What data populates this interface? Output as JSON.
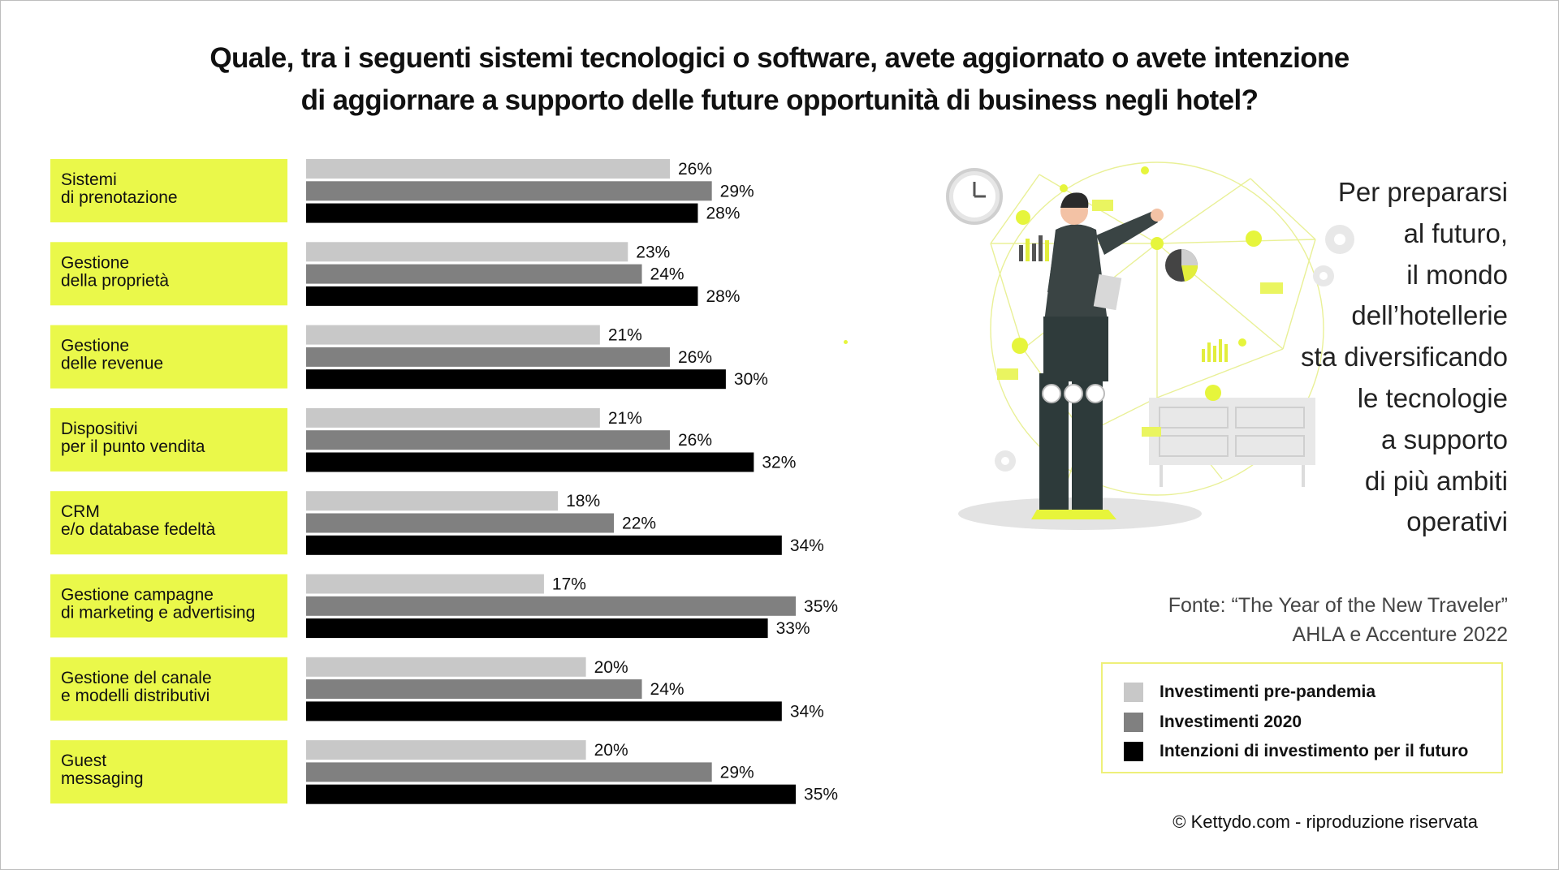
{
  "title_line1": "Quale, tra i seguenti sistemi tecnologici o software, avete aggiornato o avete intenzione",
  "title_line2": "di aggiornare a supporto delle future opportunità di business negli hotel?",
  "side_text": [
    "Per prepararsi",
    "al futuro,",
    "il mondo",
    "dell’hotellerie",
    "sta diversificando",
    "le tecnologie",
    "a supporto",
    "di più ambiti",
    "operativi"
  ],
  "source_line1": "Fonte: “The Year of the New Traveler”",
  "source_line2": "AHLA e Accenture 2022",
  "copyright": "© Kettydo.com - riproduzione riservata",
  "colors": {
    "accent": "#eaf84a",
    "pre_pandemia": "#c8c8c8",
    "invest_2020": "#808080",
    "future": "#000000"
  },
  "chart_data": {
    "type": "bar",
    "orientation": "horizontal",
    "categories": [
      [
        "Sistemi",
        "di prenotazione"
      ],
      [
        "Gestione",
        "della proprietà"
      ],
      [
        "Gestione",
        "delle revenue"
      ],
      [
        "Dispositivi",
        "per il punto vendita"
      ],
      [
        "CRM",
        "e/o database fedeltà"
      ],
      [
        "Gestione campagne",
        "di marketing e advertising"
      ],
      [
        "Gestione del canale",
        "e modelli distributivi"
      ],
      [
        "Guest",
        "messaging"
      ]
    ],
    "series": [
      {
        "name": "Investimenti pre-pandemia",
        "color": "#c8c8c8",
        "values": [
          26,
          23,
          21,
          21,
          18,
          17,
          20,
          20
        ]
      },
      {
        "name": "Investimenti 2020",
        "color": "#808080",
        "values": [
          29,
          24,
          26,
          26,
          22,
          35,
          24,
          29
        ]
      },
      {
        "name": "Intenzioni di investimento per il futuro",
        "color": "#000000",
        "values": [
          28,
          28,
          30,
          32,
          34,
          33,
          34,
          35
        ]
      }
    ],
    "value_suffix": "%",
    "xlim": [
      0,
      35
    ],
    "grid": false,
    "legend_position": "bottom-right"
  }
}
